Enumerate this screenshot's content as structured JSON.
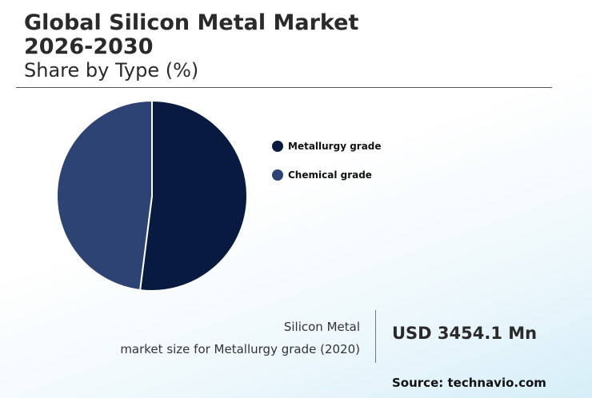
{
  "header": {
    "title": "Global Silicon Metal Market\n2026-2030",
    "subtitle": "Share by Type (%)"
  },
  "chart_data": {
    "type": "pie",
    "slices": [
      {
        "label": "Metallurgy grade",
        "value": 52.0,
        "color": "#081a40"
      },
      {
        "label": "Chemical grade",
        "value": 48.0,
        "color": "#2c4373"
      }
    ],
    "legend_position": "right"
  },
  "stat": {
    "label_line1": "Silicon Metal",
    "label_line2": "market size for Metallurgy grade (2020)",
    "value": "USD 3454.1 Mn"
  },
  "footer": {
    "source": "Source: technavio.com"
  }
}
